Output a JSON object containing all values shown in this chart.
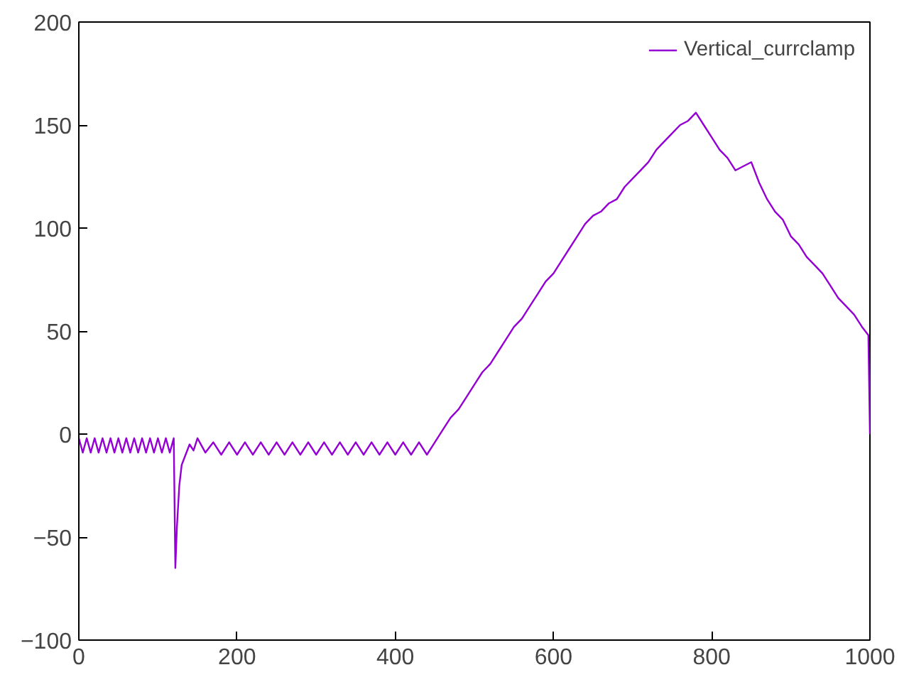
{
  "chart_data": {
    "type": "line",
    "xlim": [
      0,
      1000
    ],
    "ylim": [
      -100,
      200
    ],
    "xticks": [
      0,
      200,
      400,
      600,
      800,
      1000
    ],
    "yticks": [
      -100,
      -50,
      0,
      50,
      100,
      150,
      200
    ],
    "grid": false,
    "legend": "top right",
    "marker": "none",
    "line_style": "solid",
    "series": [
      {
        "name": "Vertical_currclamp",
        "color": "#9400d3",
        "x": [
          0,
          5,
          10,
          15,
          20,
          25,
          30,
          35,
          40,
          45,
          50,
          55,
          60,
          65,
          70,
          75,
          80,
          85,
          90,
          95,
          100,
          105,
          110,
          115,
          120,
          122,
          124,
          127,
          130,
          135,
          140,
          145,
          150,
          160,
          170,
          180,
          190,
          200,
          210,
          220,
          230,
          240,
          250,
          260,
          270,
          280,
          290,
          300,
          310,
          320,
          330,
          340,
          350,
          360,
          370,
          380,
          390,
          400,
          410,
          420,
          430,
          440,
          450,
          460,
          470,
          480,
          490,
          500,
          510,
          520,
          530,
          540,
          550,
          560,
          570,
          580,
          590,
          600,
          610,
          620,
          630,
          640,
          650,
          660,
          670,
          680,
          690,
          700,
          710,
          720,
          730,
          740,
          750,
          760,
          770,
          780,
          790,
          800,
          810,
          820,
          830,
          840,
          850,
          860,
          870,
          880,
          890,
          900,
          910,
          920,
          930,
          940,
          950,
          960,
          970,
          980,
          990,
          998,
          1000
        ],
        "values": [
          -2,
          -9,
          -2,
          -9,
          -2,
          -9,
          -2,
          -9,
          -2,
          -9,
          -2,
          -9,
          -2,
          -9,
          -2,
          -9,
          -2,
          -9,
          -2,
          -9,
          -2,
          -9,
          -2,
          -9,
          -2,
          -65,
          -45,
          -25,
          -15,
          -10,
          -5,
          -8,
          -2,
          -9,
          -4,
          -10,
          -4,
          -10,
          -4,
          -10,
          -4,
          -10,
          -4,
          -10,
          -4,
          -10,
          -4,
          -10,
          -4,
          -10,
          -4,
          -10,
          -4,
          -10,
          -4,
          -10,
          -4,
          -10,
          -4,
          -10,
          -4,
          -10,
          -4,
          2,
          8,
          12,
          18,
          24,
          30,
          34,
          40,
          46,
          52,
          56,
          62,
          68,
          74,
          78,
          84,
          90,
          96,
          102,
          106,
          108,
          112,
          114,
          120,
          124,
          128,
          132,
          138,
          142,
          146,
          150,
          152,
          156,
          150,
          144,
          138,
          134,
          128,
          130,
          132,
          122,
          114,
          108,
          104,
          96,
          92,
          86,
          82,
          78,
          72,
          66,
          62,
          58,
          52,
          48,
          0
        ]
      }
    ]
  }
}
